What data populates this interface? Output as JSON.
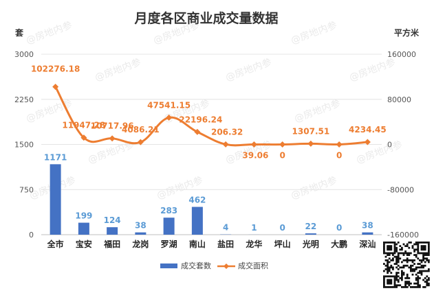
{
  "chart_data": {
    "type": "bar",
    "title": "月度各区商业成交量数据",
    "categories": [
      "全市",
      "宝安",
      "福田",
      "龙岗",
      "罗湖",
      "南山",
      "盐田",
      "龙华",
      "坪山",
      "光明",
      "大鹏",
      "深汕"
    ],
    "y_left": {
      "unit": "套",
      "range": [
        0,
        3000
      ],
      "ticks": [
        "0",
        "750",
        "1500",
        "2250",
        "3000"
      ]
    },
    "y_right": {
      "unit": "平方米",
      "range": [
        -160000,
        160000
      ],
      "ticks": [
        "-160000",
        "-80000",
        "0",
        "80000",
        "160000"
      ]
    },
    "series": [
      {
        "name": "成交套数",
        "type": "bar",
        "axis": "left",
        "color": "#4472c4",
        "values": [
          1171,
          199,
          124,
          38,
          283,
          462,
          4,
          1,
          0,
          22,
          0,
          38
        ],
        "labels": [
          "1171",
          "199",
          "124",
          "38",
          "283",
          "462",
          "4",
          "1",
          "0",
          "22",
          "0",
          "38"
        ]
      },
      {
        "name": "成交面积",
        "type": "line",
        "axis": "right",
        "color": "#ed7d31",
        "values": [
          102276.18,
          11947.28,
          10717.96,
          4086.21,
          47541.15,
          22196.24,
          206.32,
          39.06,
          0,
          1307.51,
          0,
          4234.45
        ],
        "labels": [
          "102276.18",
          "11947.28",
          "10717.96",
          "4086.21",
          "47541.15",
          "22196.24",
          "206.32",
          "39.06",
          "0",
          "1307.51",
          "0",
          "4234.45"
        ]
      }
    ],
    "grid": true,
    "legend": "bottom",
    "watermark": "@房地内参"
  }
}
